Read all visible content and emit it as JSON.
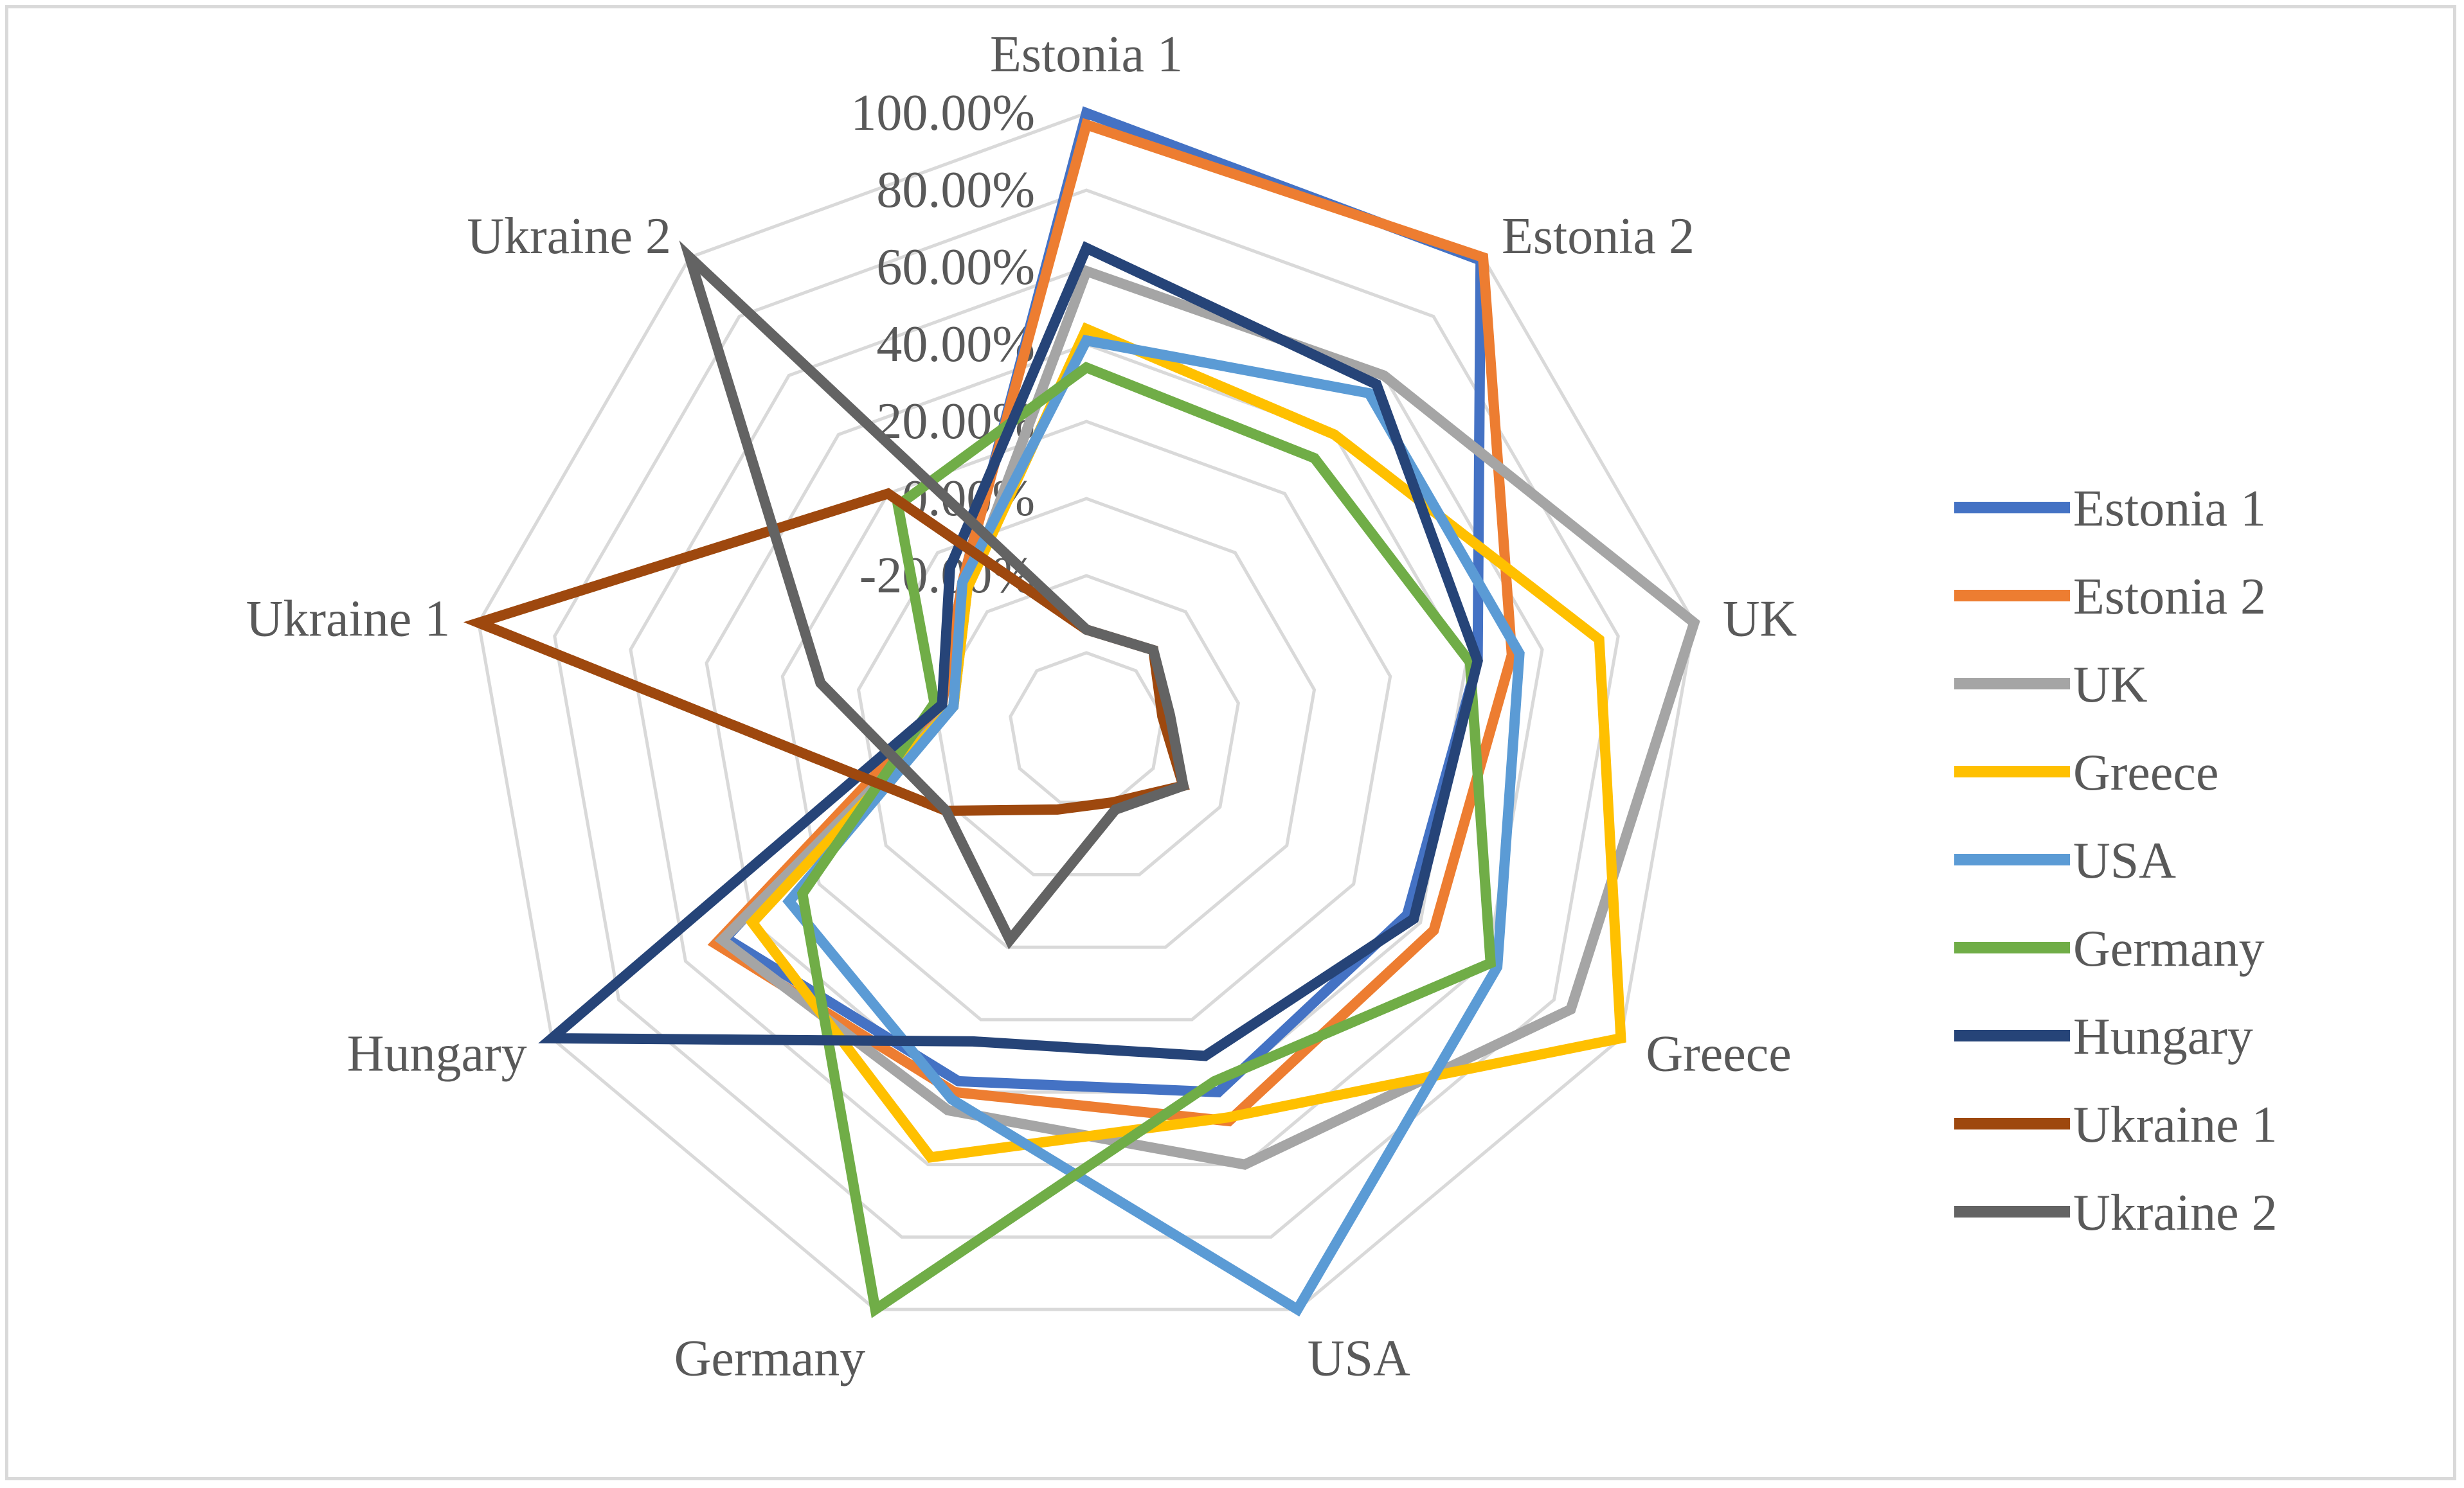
{
  "chart_data": {
    "type": "radar",
    "title": "",
    "categories": [
      "Estonia 1",
      "Estonia 2",
      "UK",
      "Greece",
      "USA",
      "Germany",
      "Hungary",
      "Ukraine 1",
      "Ukraine 2"
    ],
    "tick_labels": [
      "-20.00%",
      "0.00%",
      "20.00%",
      "40.00%",
      "60.00%",
      "80.00%",
      "100.00%"
    ],
    "rlim": [
      -60,
      100
    ],
    "series": [
      {
        "name": "Estonia 1",
        "color": "#4472c4",
        "values": [
          100,
          99,
          43,
          36,
          40,
          37,
          48,
          -22,
          -10
        ]
      },
      {
        "name": "Estonia 2",
        "color": "#ed7d31",
        "values": [
          97,
          100,
          52,
          44,
          48,
          40,
          51,
          -22,
          -10
        ]
      },
      {
        "name": "UK",
        "color": "#a5a5a5",
        "values": [
          59,
          60,
          100,
          85,
          60,
          45,
          49,
          -25,
          -12
        ]
      },
      {
        "name": "Greece",
        "color": "#ffc000",
        "values": [
          44,
          40,
          75,
          100,
          47,
          58,
          40,
          -25,
          -12
        ]
      },
      {
        "name": "USA",
        "color": "#5b9bd5",
        "values": [
          41,
          54,
          54,
          63,
          100,
          42,
          29,
          -25,
          -10
        ]
      },
      {
        "name": "Germany",
        "color": "#70ad47",
        "values": [
          34,
          32,
          41,
          61,
          37,
          100,
          25,
          -20,
          16
        ]
      },
      {
        "name": "Hungary",
        "color": "#264478",
        "values": [
          65,
          57,
          43,
          38,
          30,
          26,
          100,
          -22,
          -5
        ]
      },
      {
        "name": "Ukraine 1",
        "color": "#9e480e",
        "values": [
          -34,
          -33,
          -40,
          -31,
          -40,
          -38,
          -18,
          100,
          20
        ]
      },
      {
        "name": "Ukraine 2",
        "color": "#636363",
        "values": [
          -34,
          -33,
          -38,
          -31,
          -38,
          -2,
          -18,
          10,
          100
        ]
      }
    ],
    "legend_position": "right"
  }
}
